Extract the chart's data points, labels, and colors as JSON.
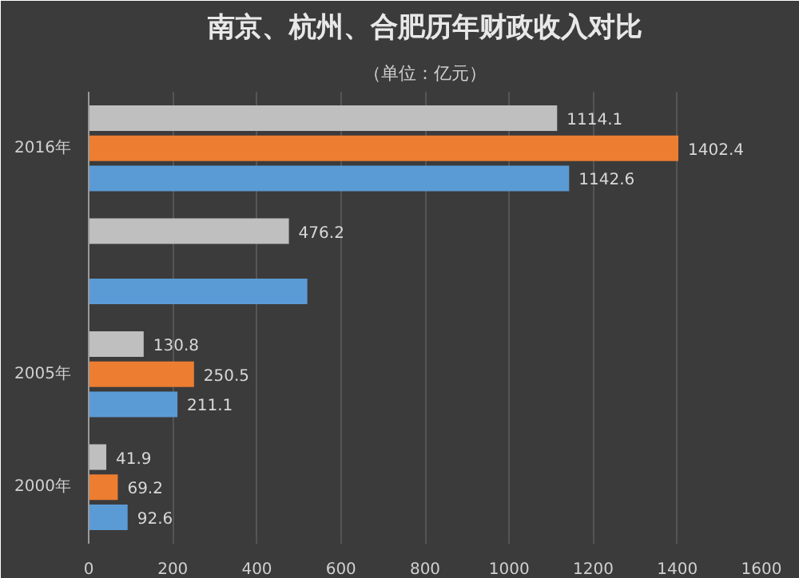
{
  "chart_data": {
    "type": "bar",
    "orientation": "horizontal",
    "title": "南京、杭州、合肥历年财政收入对比",
    "subtitle": "（单位：亿元）",
    "categories": [
      "2016年",
      null,
      "2005年",
      "2000年"
    ],
    "series": [
      {
        "color": "#bfbfbf",
        "values": [
          1114.1,
          476.2,
          130.8,
          41.9
        ],
        "value_labels": [
          "1114.1",
          "476.2",
          "130.8",
          "41.9"
        ]
      },
      {
        "color": "#ed7d31",
        "values": [
          1402.4,
          null,
          250.5,
          69.2
        ],
        "value_labels": [
          "1402.4",
          null,
          "250.5",
          "69.2"
        ]
      },
      {
        "color": "#5b9bd5",
        "values": [
          1142.6,
          520,
          211.1,
          92.6
        ],
        "value_labels": [
          "1142.6",
          null,
          "211.1",
          "92.6"
        ]
      }
    ],
    "xlim": [
      0,
      1600
    ],
    "xticks": [
      0,
      200,
      400,
      600,
      800,
      1000,
      1200,
      1400,
      1600
    ],
    "grid": "x"
  }
}
